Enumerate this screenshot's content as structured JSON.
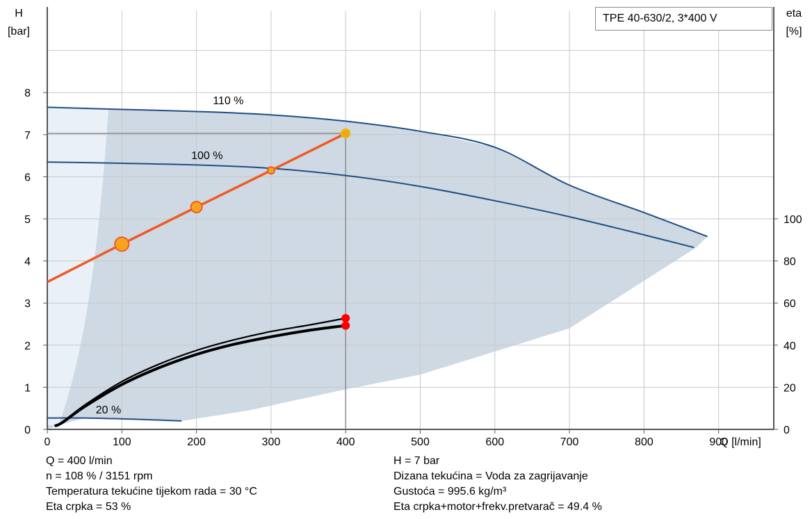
{
  "chart_data": {
    "type": "line",
    "title": "TPE 40-630/2, 3*400 V",
    "xlabel": "Q [l/min]",
    "ylabel_left": "H\n[bar]",
    "ylabel_right": "eta\n[%]",
    "xlim": [
      0,
      1000
    ],
    "ylim_left": [
      0,
      9
    ],
    "ylim_right": [
      0,
      100
    ],
    "x_ticks": [
      0,
      100,
      200,
      300,
      400,
      500,
      600,
      700,
      800,
      900
    ],
    "y_ticks_left": [
      0,
      1,
      2,
      3,
      4,
      5,
      6,
      7,
      8
    ],
    "y_ticks_right": [
      0,
      20,
      40,
      60,
      80,
      100
    ],
    "grid": true,
    "colors": {
      "operating_region": "#ced9e4",
      "low_flow_region": "#e9f0f8",
      "pump_curve": "#1f4e82",
      "system_curve": "#f05a22",
      "system_point_fill": "#f7a41c",
      "efficiency_curve": "#000000",
      "duty_marker": "#ff0000",
      "grid": "#c8c8c8"
    },
    "series": [
      {
        "name": "110 %",
        "kind": "pump_curve",
        "x": [
          0,
          100,
          200,
          300,
          400,
          500,
          600,
          700,
          800,
          885
        ],
        "y": [
          7.65,
          7.6,
          7.55,
          7.47,
          7.32,
          7.08,
          6.7,
          5.8,
          5.15,
          4.58
        ]
      },
      {
        "name": "100 %",
        "kind": "pump_curve",
        "x": [
          0,
          100,
          200,
          300,
          400,
          500,
          600,
          700,
          800,
          867
        ],
        "y": [
          6.35,
          6.32,
          6.28,
          6.2,
          6.03,
          5.77,
          5.43,
          5.05,
          4.62,
          4.32
        ]
      },
      {
        "name": "20 %",
        "kind": "pump_curve",
        "x": [
          0,
          50,
          100,
          150,
          180
        ],
        "y": [
          0.27,
          0.27,
          0.25,
          0.22,
          0.2
        ]
      },
      {
        "kind": "system_curve",
        "x": [
          0,
          100,
          200,
          300,
          400
        ],
        "y": [
          3.5,
          4.4,
          5.28,
          6.15,
          7.03
        ]
      },
      {
        "kind": "efficiency",
        "axis": "right",
        "x": [
          10,
          20,
          50,
          100,
          150,
          200,
          250,
          300,
          350,
          400
        ],
        "y": [
          1.7,
          3.4,
          11.5,
          22.7,
          31.0,
          37.5,
          42.5,
          46.5,
          49.5,
          52.8
        ]
      },
      {
        "kind": "efficiency",
        "axis": "right",
        "x": [
          10,
          20,
          50,
          100,
          150,
          200,
          250,
          300,
          350,
          400
        ],
        "y": [
          1.6,
          3.2,
          10.8,
          21.3,
          29.3,
          35.6,
          40.4,
          44.0,
          47.0,
          49.3
        ]
      }
    ],
    "operating_point": {
      "Q": 400,
      "H": 7.03
    }
  },
  "info": {
    "left": [
      "Q = 400 l/min",
      "n = 108 % / 3151 rpm",
      "Temperatura tekućine tijekom rada = 30 °C",
      "Eta crpka = 53 %"
    ],
    "right": [
      "H = 7 bar",
      "Dizana tekućina = Voda za zagrijavanje",
      "Gustoća = 995.6 kg/m³",
      "Eta crpka+motor+frekv.pretvarač = 49.4 %"
    ]
  }
}
